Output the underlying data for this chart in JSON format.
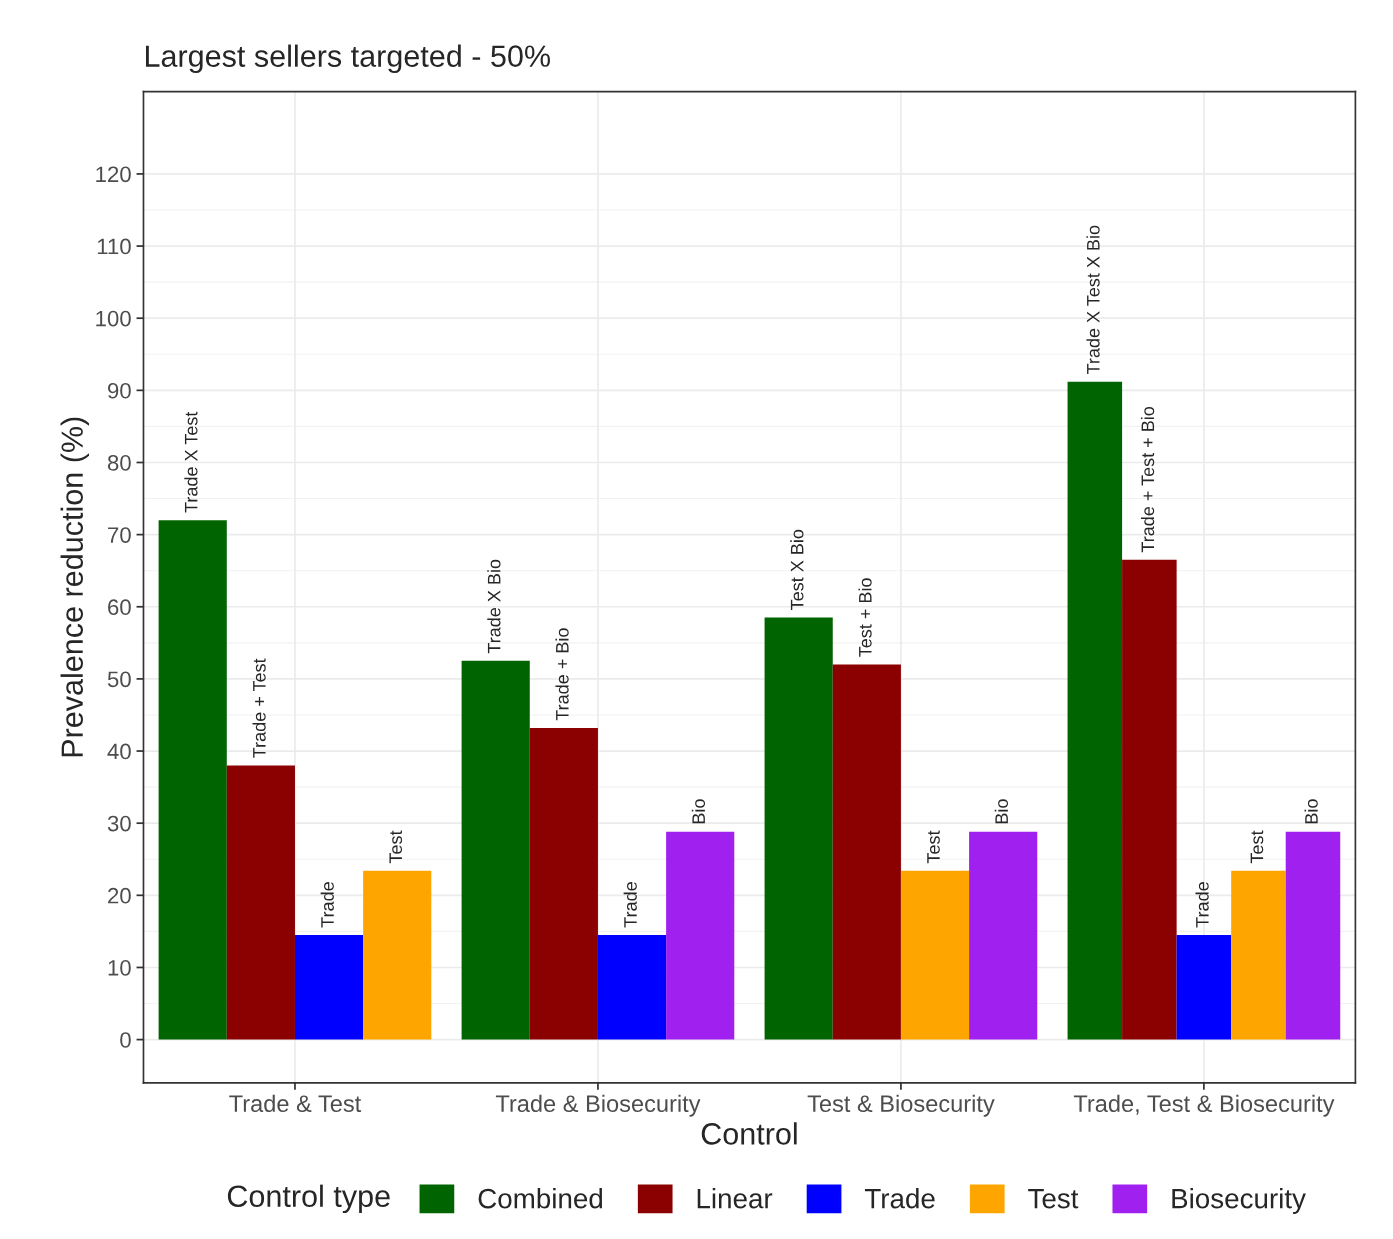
{
  "chart_data": {
    "type": "bar",
    "title": "Largest sellers targeted - 50%",
    "xlabel": "Control",
    "ylabel": "Prevalence reduction (%)",
    "legend_title": "Control type",
    "categories": [
      "Trade & Test",
      "Trade & Biosecurity",
      "Test & Biosecurity",
      "Trade, Test & Biosecurity"
    ],
    "series": [
      {
        "name": "Combined",
        "color": "#006400",
        "values": [
          72,
          52.5,
          58.5,
          91.2
        ],
        "value_labels": [
          "Trade X Test",
          "Trade X Bio",
          "Test X Bio",
          "Trade X Test X Bio"
        ]
      },
      {
        "name": "Linear",
        "color": "#8b0000",
        "values": [
          38,
          43.2,
          52,
          66.5
        ],
        "value_labels": [
          "Trade + Test",
          "Trade + Bio",
          "Test + Bio",
          "Trade + Test + Bio"
        ]
      },
      {
        "name": "Trade",
        "color": "#0000ff",
        "values": [
          14.5,
          14.5,
          null,
          14.5
        ],
        "value_labels": [
          "Trade",
          "Trade",
          null,
          "Trade"
        ]
      },
      {
        "name": "Test",
        "color": "#ffa500",
        "values": [
          23.4,
          null,
          23.4,
          23.4
        ],
        "value_labels": [
          "Test",
          null,
          "Test",
          "Test"
        ]
      },
      {
        "name": "Biosecurity",
        "color": "#a020f0",
        "values": [
          null,
          28.8,
          28.8,
          28.8
        ],
        "value_labels": [
          null,
          "Bio",
          "Bio",
          "Bio"
        ]
      }
    ],
    "ylim": [
      -6,
      131.4
    ],
    "yticks": [
      0,
      10,
      20,
      30,
      40,
      50,
      60,
      70,
      80,
      90,
      100,
      110,
      120
    ],
    "grid": true,
    "legend": "bottom"
  }
}
